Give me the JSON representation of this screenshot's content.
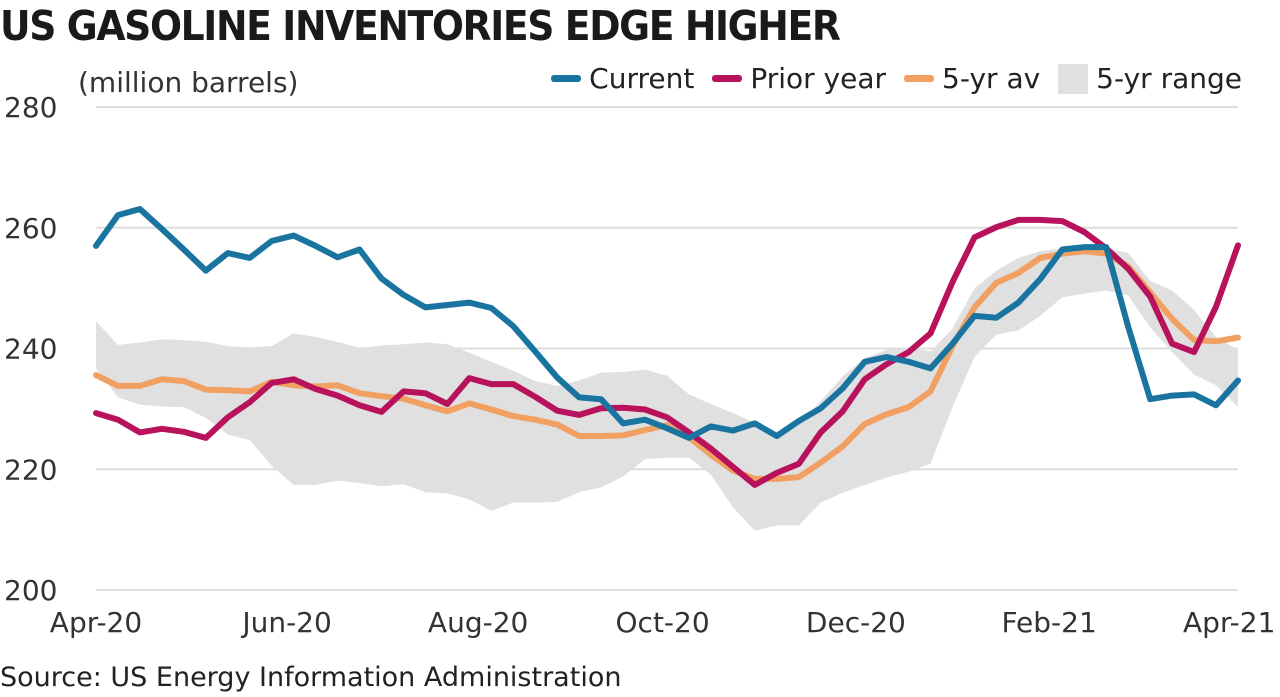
{
  "title": "US GASOLINE INVENTORIES EDGE HIGHER",
  "unit_label": "(million barrels)",
  "source": "Source: US Energy Information Administration",
  "colors": {
    "current": "#1a74a0",
    "prior": "#b8125c",
    "avg": "#f1a062",
    "range": "#e0e0e0",
    "grid": "#dddddd"
  },
  "legend": [
    {
      "key": "current",
      "label": "Current",
      "kind": "line"
    },
    {
      "key": "prior",
      "label": "Prior year",
      "kind": "line"
    },
    {
      "key": "avg",
      "label": "5-yr av",
      "kind": "line"
    },
    {
      "key": "range",
      "label": "5-yr range",
      "kind": "box"
    }
  ],
  "chart_data": {
    "type": "line",
    "title": "US GASOLINE INVENTORIES EDGE HIGHER",
    "ylabel": "(million barrels)",
    "ylim": [
      200,
      280
    ],
    "yticks": [
      200,
      220,
      240,
      260,
      280
    ],
    "xlim": [
      0,
      52
    ],
    "x_ticks": [
      {
        "x": 0,
        "label": "Apr-20"
      },
      {
        "x": 8.7,
        "label": "Jun-20"
      },
      {
        "x": 17.4,
        "label": "Aug-20"
      },
      {
        "x": 25.8,
        "label": "Oct-20"
      },
      {
        "x": 34.6,
        "label": "Dec-20"
      },
      {
        "x": 43.4,
        "label": "Feb-21"
      },
      {
        "x": 51.6,
        "label": "Apr-21"
      }
    ],
    "grid": true,
    "legend_position": "top-right",
    "x": [
      0,
      1,
      2,
      3,
      4,
      5,
      6,
      7,
      8,
      9,
      10,
      11,
      12,
      13,
      14,
      15,
      16,
      17,
      18,
      19,
      20,
      21,
      22,
      23,
      24,
      25,
      26,
      27,
      28,
      29,
      30,
      31,
      32,
      33,
      34,
      35,
      36,
      37,
      38,
      39,
      40,
      41,
      42,
      43,
      44,
      45,
      46,
      47,
      48,
      49,
      50,
      51,
      52
    ],
    "series": [
      {
        "name": "Current",
        "color_key": "current",
        "values": [
          257,
          262.1,
          263.1,
          259.8,
          256.4,
          252.9,
          255.8,
          255,
          257.8,
          258.7,
          257,
          255.1,
          256.4,
          251.6,
          248.9,
          246.8,
          247.2,
          247.6,
          246.7,
          243.7,
          239.5,
          235.2,
          231.9,
          231.6,
          227.6,
          228.2,
          226.8,
          225.2,
          227.1,
          226.4,
          227.6,
          225.5,
          228,
          230.1,
          233.4,
          237.8,
          238.6,
          237.8,
          236.7,
          240.8,
          245.4,
          245.1,
          247.6,
          251.5,
          256.4,
          256.8,
          256.8,
          243.6,
          231.6,
          232.2,
          232.4,
          230.6,
          234.7
        ]
      },
      {
        "name": "Prior year",
        "color_key": "prior",
        "values": [
          229.3,
          228.2,
          226.1,
          226.7,
          226.2,
          225.2,
          228.6,
          231.1,
          234.3,
          234.9,
          233.3,
          232.2,
          230.6,
          229.5,
          232.9,
          232.6,
          230.8,
          235.1,
          234.1,
          234.1,
          232,
          229.7,
          229,
          230.1,
          230.2,
          229.9,
          228.6,
          226.1,
          223.4,
          220.4,
          217.4,
          219.4,
          220.9,
          226.1,
          229.6,
          234.9,
          237.4,
          239.4,
          242.5,
          251,
          258.4,
          260.1,
          261.3,
          261.3,
          261.1,
          259.3,
          256.6,
          253.2,
          248.6,
          240.8,
          239.4,
          246.9,
          257.1
        ]
      },
      {
        "name": "5-yr av",
        "color_key": "avg",
        "values": [
          235.6,
          233.8,
          233.8,
          234.9,
          234.6,
          233.2,
          233.1,
          232.9,
          234.5,
          233.9,
          233.7,
          233.9,
          232.6,
          232.1,
          231.7,
          230.6,
          229.6,
          230.9,
          229.9,
          228.8,
          228.2,
          227.4,
          225.5,
          225.5,
          225.6,
          226.5,
          227.3,
          225.3,
          222.4,
          219.8,
          218.4,
          218.4,
          218.7,
          221.1,
          223.8,
          227.5,
          229.1,
          230.3,
          232.9,
          240.4,
          246.8,
          250.9,
          252.5,
          255,
          255.7,
          256.1,
          255.7,
          253.6,
          249.3,
          244.9,
          241.4,
          241.2,
          241.8
        ]
      },
      {
        "name": "5-yr range",
        "color_key": "range",
        "kind": "band",
        "low": [
          236.7,
          231.9,
          230.7,
          230.4,
          230.3,
          228.5,
          225.8,
          224.8,
          220.6,
          217.4,
          217.4,
          218.1,
          217.7,
          217.2,
          217.5,
          216.2,
          216,
          215,
          213.1,
          214.5,
          214.5,
          214.6,
          216.2,
          217,
          218.8,
          221.7,
          221.9,
          221.9,
          219.1,
          213.7,
          209.8,
          210.7,
          210.7,
          214.5,
          216.1,
          217.4,
          218.6,
          219.6,
          220.9,
          230.3,
          238.6,
          242.3,
          243,
          245.4,
          248.5,
          249.1,
          249.6,
          248.8,
          243.5,
          239.4,
          235.7,
          233.9,
          230.3
        ],
        "high": [
          244.5,
          240.6,
          241,
          241.5,
          241.4,
          241.1,
          240.4,
          240.2,
          240.4,
          242.5,
          241.9,
          241.1,
          240.1,
          240.5,
          240.7,
          241,
          240.7,
          239.3,
          237.8,
          236.3,
          234.6,
          233.8,
          234.7,
          236,
          236.1,
          236.5,
          235.5,
          232.4,
          230.8,
          229.3,
          227.7,
          225.9,
          227.5,
          231.3,
          235.4,
          238.4,
          239.8,
          240.2,
          239.5,
          243.3,
          250,
          252.9,
          255,
          256.1,
          256.6,
          257.3,
          256.6,
          255.8,
          251.2,
          249.6,
          246.4,
          241.9,
          239.8
        ]
      }
    ]
  }
}
